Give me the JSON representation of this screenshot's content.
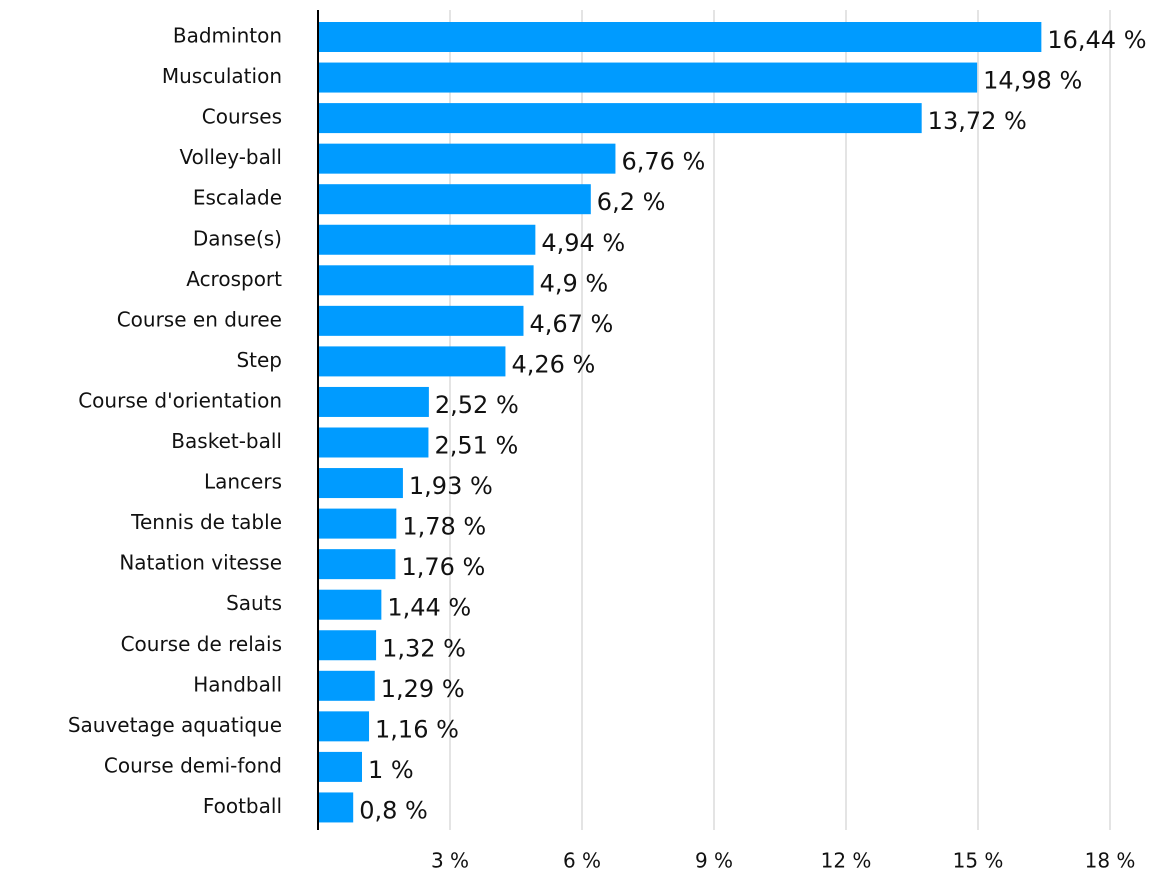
{
  "chart_data": {
    "type": "bar",
    "orientation": "horizontal",
    "categories": [
      "Badminton",
      "Musculation",
      "Courses",
      "Volley-ball",
      "Escalade",
      "Danse(s)",
      "Acrosport",
      "Course en duree",
      "Step",
      "Course d'orientation",
      "Basket-ball",
      "Lancers",
      "Tennis de table",
      "Natation vitesse",
      "Sauts",
      "Course de relais",
      "Handball",
      "Sauvetage aquatique",
      "Course demi-fond",
      "Football"
    ],
    "values": [
      16.44,
      14.98,
      13.72,
      6.76,
      6.2,
      4.94,
      4.9,
      4.67,
      4.26,
      2.52,
      2.51,
      1.93,
      1.78,
      1.76,
      1.44,
      1.32,
      1.29,
      1.16,
      1,
      0.8
    ],
    "value_labels": [
      "16,44 %",
      "14,98 %",
      "13,72 %",
      "6,76 %",
      "6,2 %",
      "4,94 %",
      "4,9 %",
      "4,67 %",
      "4,26 %",
      "2,52 %",
      "2,51 %",
      "1,93 %",
      "1,78 %",
      "1,76 %",
      "1,44 %",
      "1,32 %",
      "1,29 %",
      "1,16 %",
      "1 %",
      "0,8 %"
    ],
    "color": "#009bff",
    "xlim": [
      0,
      18
    ],
    "xticks": [
      {
        "value": 3,
        "label": "3 %"
      },
      {
        "value": 6,
        "label": "6 %"
      },
      {
        "value": 9,
        "label": "9 %"
      },
      {
        "value": 12,
        "label": "12 %"
      },
      {
        "value": 15,
        "label": "15 %"
      },
      {
        "value": 18,
        "label": "18 %"
      }
    ],
    "grid": true
  }
}
